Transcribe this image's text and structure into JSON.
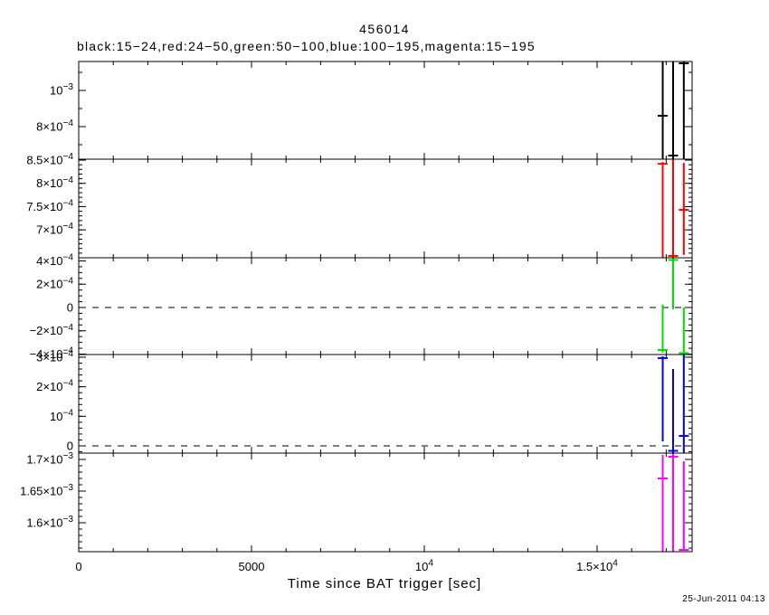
{
  "footer": {
    "timestamp": "25-Jun-2011 04:13"
  },
  "chart_data": {
    "type": "errorbar",
    "title": "456014",
    "subtitle": "black:15−24,red:24−50,green:50−100,blue:100−195,magenta:15−195",
    "xlabel": "Time since BAT trigger [sec]",
    "xlim": [
      0,
      17750
    ],
    "x_minor_step": 1000,
    "x_major_ticks": [
      {
        "v": 0,
        "label": "0"
      },
      {
        "v": 5000,
        "label": "5000"
      },
      {
        "v": 10000,
        "label": "10^4"
      },
      {
        "v": 15000,
        "label": "1.5×10^4"
      }
    ],
    "layout": {
      "left": 87,
      "right": 765,
      "plot_top": 68,
      "plot_bottom": 610,
      "y_minor_len": 4,
      "y_major_len": 8,
      "x_minor_len": 4,
      "x_major_len": 7
    },
    "panels": [
      {
        "band": "15-24 keV",
        "color": "black",
        "hex": "#000000",
        "top": 68,
        "bottom": 176,
        "ylim": [
          0.00062,
          0.00116
        ],
        "minor": 0.0001,
        "zero_dashed": false,
        "yticks": [
          {
            "v": 0.0008,
            "label": "8×10^−4"
          },
          {
            "v": 0.001,
            "label": "10^−3"
          }
        ],
        "points": [
          {
            "t": 16900,
            "y": 0.00086,
            "ylo": 0.0003,
            "yhi": 0.002
          },
          {
            "t": 17200,
            "y": 0.00064,
            "ylo": 0.0003,
            "yhi": 0.002
          },
          {
            "t": 17510,
            "y": 0.00115,
            "ylo": 0.0003,
            "yhi": 0.002
          }
        ]
      },
      {
        "band": "24-50 keV",
        "color": "red",
        "hex": "#ff0000",
        "top": 176,
        "bottom": 285,
        "ylim": [
          0.00064,
          0.000852
        ],
        "minor": 1e-05,
        "zero_dashed": false,
        "yticks": [
          {
            "v": 0.0007,
            "label": "7×10^−4"
          },
          {
            "v": 0.00075,
            "label": "7.5×10^−4"
          },
          {
            "v": 0.0008,
            "label": "8×10^−4"
          },
          {
            "v": 0.00085,
            "label": "8.5×10^−4"
          }
        ],
        "points": [
          {
            "t": 16900,
            "y": 0.000842,
            "ylo": 0.0004,
            "yhi": 0.000846
          },
          {
            "t": 17200,
            "y": 0.000644,
            "ylo": 0.0004,
            "yhi": 0.002
          },
          {
            "t": 17510,
            "y": 0.000743,
            "ylo": 0.000646,
            "yhi": 0.000844
          }
        ]
      },
      {
        "band": "50-100 keV",
        "color": "green",
        "hex": "#00dd00",
        "top": 285,
        "bottom": 392,
        "ylim": [
          -0.000404,
          0.000427
        ],
        "minor": 5e-05,
        "zero_dashed": true,
        "yticks": [
          {
            "v": -0.0004,
            "label": "−4×10^−4"
          },
          {
            "v": -0.0002,
            "label": "−2×10^−4"
          },
          {
            "v": 0,
            "label": "0"
          },
          {
            "v": 0.0002,
            "label": "2×10^−4"
          },
          {
            "v": 0.0004,
            "label": "4×10^−4"
          }
        ],
        "points": [
          {
            "t": 16900,
            "y": -0.000365,
            "ylo": -0.000388,
            "yhi": 2.3e-05
          },
          {
            "t": 17200,
            "y": 0.000408,
            "ylo": -1.55e-05,
            "yhi": 0.00055
          },
          {
            "t": 17510,
            "y": -0.000392,
            "ylo": -0.00055,
            "yhi": 0.0
          }
        ]
      },
      {
        "band": "100-195 keV",
        "color": "blue",
        "hex": "#0000ee",
        "top": 392,
        "bottom": 501,
        "ylim": [
          -2.45e-05,
          0.000309
        ],
        "minor": 2e-05,
        "zero_dashed": true,
        "yticks": [
          {
            "v": 0,
            "label": "0"
          },
          {
            "v": 0.0001,
            "label": "10^−4"
          },
          {
            "v": 0.0002,
            "label": "2×10^−4"
          },
          {
            "v": 0.0003,
            "label": "3×10^−4"
          }
        ],
        "points": [
          {
            "t": 16900,
            "y": 0.000297,
            "ylo": 1.5e-05,
            "yhi": 0.000303
          },
          {
            "t": 17200,
            "y": -1.68e-05,
            "ylo": -2.45e-05,
            "yhi": 0.00026
          },
          {
            "t": 17510,
            "y": 3.37e-05,
            "ylo": -0.0001,
            "yhi": 0.00055
          }
        ]
      },
      {
        "band": "15-195 keV",
        "color": "magenta",
        "hex": "#ff00ff",
        "top": 501,
        "bottom": 610,
        "ylim": [
          0.0015543,
          0.00171
        ],
        "minor": 1e-05,
        "zero_dashed": false,
        "yticks": [
          {
            "v": 0.0016,
            "label": "1.6×10^−3"
          },
          {
            "v": 0.00165,
            "label": "1.65×10^−3"
          },
          {
            "v": 0.0017,
            "label": "1.7×10^−3"
          }
        ],
        "points": [
          {
            "t": 16900,
            "y": 0.00167,
            "ylo": 0.00145,
            "yhi": 0.0017071
          },
          {
            "t": 17200,
            "y": 0.0017043,
            "ylo": 0.00145,
            "yhi": 0.0018
          },
          {
            "t": 17510,
            "y": 0.0015571,
            "ylo": 0.0015571,
            "yhi": 0.0016971
          }
        ]
      }
    ]
  }
}
